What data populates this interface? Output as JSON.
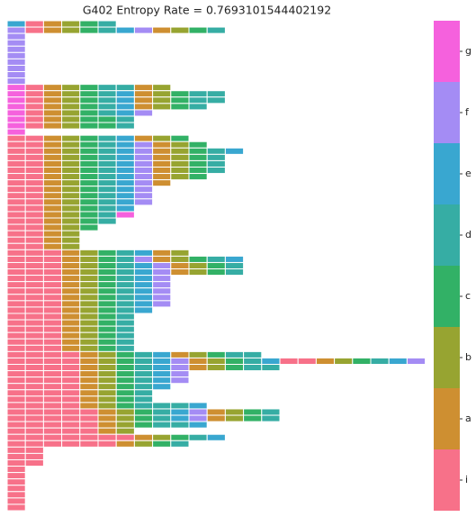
{
  "chart_data": {
    "type": "sequence-heatmap",
    "title": "G402 Entropy Rate = 0.7693101544402192",
    "categories": [
      "i",
      "a",
      "b",
      "c",
      "d",
      "e",
      "f",
      "g"
    ],
    "colors": [
      "#f77189",
      "#ce8f31",
      "#97a431",
      "#32b166",
      "#36ada4",
      "#39a7d0",
      "#a48cf4",
      "#f561dd"
    ],
    "rows": [
      [
        "e",
        "i",
        "a",
        "b",
        "c",
        "d"
      ],
      [
        "f",
        "i",
        "a",
        "b",
        "c",
        "d",
        "e",
        "f",
        "a",
        "b",
        "c",
        "d"
      ],
      [
        "f"
      ],
      [
        "f"
      ],
      [
        "f"
      ],
      [
        "f"
      ],
      [
        "f"
      ],
      [
        "f"
      ],
      [
        "f"
      ],
      [
        "f"
      ],
      [
        "g",
        "i",
        "a",
        "b",
        "c",
        "d",
        "d",
        "a",
        "b"
      ],
      [
        "g",
        "i",
        "a",
        "b",
        "c",
        "d",
        "e",
        "a",
        "b",
        "c",
        "d",
        "d"
      ],
      [
        "g",
        "i",
        "a",
        "b",
        "c",
        "d",
        "e",
        "a",
        "b",
        "c",
        "d",
        "d"
      ],
      [
        "g",
        "i",
        "a",
        "b",
        "c",
        "d",
        "e",
        "a",
        "b",
        "c",
        "d"
      ],
      [
        "g",
        "i",
        "a",
        "b",
        "c",
        "d",
        "e",
        "f"
      ],
      [
        "g",
        "i",
        "a",
        "b",
        "c",
        "c",
        "d"
      ],
      [
        "g",
        "i",
        "a",
        "b",
        "c",
        "c",
        "d"
      ],
      [
        "g"
      ],
      [
        "i",
        "i",
        "a",
        "b",
        "c",
        "d",
        "e",
        "a",
        "b",
        "c"
      ],
      [
        "i",
        "i",
        "a",
        "b",
        "c",
        "d",
        "e",
        "f",
        "a",
        "b",
        "c"
      ],
      [
        "i",
        "i",
        "a",
        "b",
        "c",
        "d",
        "e",
        "f",
        "a",
        "b",
        "c",
        "d",
        "e"
      ],
      [
        "i",
        "i",
        "a",
        "b",
        "c",
        "d",
        "e",
        "f",
        "a",
        "b",
        "c",
        "d"
      ],
      [
        "i",
        "i",
        "a",
        "b",
        "c",
        "d",
        "e",
        "f",
        "a",
        "b",
        "c",
        "d"
      ],
      [
        "i",
        "i",
        "a",
        "b",
        "c",
        "d",
        "e",
        "f",
        "a",
        "b",
        "c",
        "d"
      ],
      [
        "i",
        "i",
        "a",
        "b",
        "c",
        "d",
        "e",
        "f",
        "a",
        "b",
        "c"
      ],
      [
        "i",
        "i",
        "a",
        "b",
        "c",
        "d",
        "e",
        "f",
        "a"
      ],
      [
        "i",
        "i",
        "a",
        "b",
        "c",
        "d",
        "e",
        "f"
      ],
      [
        "i",
        "i",
        "a",
        "b",
        "c",
        "d",
        "e",
        "f"
      ],
      [
        "i",
        "i",
        "a",
        "b",
        "c",
        "d",
        "e",
        "f"
      ],
      [
        "i",
        "i",
        "a",
        "b",
        "c",
        "d",
        "e"
      ],
      [
        "i",
        "i",
        "a",
        "b",
        "c",
        "d",
        "g"
      ],
      [
        "i",
        "i",
        "a",
        "b",
        "c",
        "d"
      ],
      [
        "i",
        "i",
        "a",
        "b",
        "c"
      ],
      [
        "i",
        "i",
        "a",
        "b"
      ],
      [
        "i",
        "i",
        "a",
        "b"
      ],
      [
        "i",
        "i",
        "a",
        "b"
      ],
      [
        "i",
        "i",
        "i",
        "a",
        "b",
        "c",
        "d",
        "e",
        "a",
        "b"
      ],
      [
        "i",
        "i",
        "i",
        "a",
        "b",
        "c",
        "d",
        "f",
        "a",
        "b",
        "c",
        "d",
        "e"
      ],
      [
        "i",
        "i",
        "i",
        "a",
        "b",
        "c",
        "d",
        "e",
        "f",
        "a",
        "b",
        "c",
        "d"
      ],
      [
        "i",
        "i",
        "i",
        "a",
        "b",
        "c",
        "d",
        "e",
        "f",
        "a",
        "b",
        "c",
        "d"
      ],
      [
        "i",
        "i",
        "i",
        "a",
        "b",
        "c",
        "d",
        "e",
        "f"
      ],
      [
        "i",
        "i",
        "i",
        "a",
        "b",
        "c",
        "d",
        "e",
        "f"
      ],
      [
        "i",
        "i",
        "i",
        "a",
        "b",
        "c",
        "d",
        "e",
        "f"
      ],
      [
        "i",
        "i",
        "i",
        "a",
        "b",
        "c",
        "d",
        "e",
        "f"
      ],
      [
        "i",
        "i",
        "i",
        "a",
        "b",
        "c",
        "d",
        "e",
        "f"
      ],
      [
        "i",
        "i",
        "i",
        "a",
        "b",
        "c",
        "d",
        "e"
      ],
      [
        "i",
        "i",
        "i",
        "a",
        "b",
        "c",
        "d"
      ],
      [
        "i",
        "i",
        "i",
        "a",
        "b",
        "c",
        "d"
      ],
      [
        "i",
        "i",
        "i",
        "a",
        "b",
        "c",
        "d"
      ],
      [
        "i",
        "i",
        "i",
        "a",
        "b",
        "c",
        "d"
      ],
      [
        "i",
        "i",
        "i",
        "a",
        "b",
        "c",
        "d"
      ],
      [
        "i",
        "i",
        "i",
        "a",
        "b",
        "c",
        "d"
      ],
      [
        "i",
        "i",
        "i",
        "i",
        "a",
        "b",
        "c",
        "d",
        "e",
        "a",
        "b",
        "c",
        "d",
        "d"
      ],
      [
        "i",
        "i",
        "i",
        "i",
        "a",
        "b",
        "c",
        "d",
        "e",
        "f",
        "a",
        "b",
        "c",
        "d",
        "e",
        "i",
        "i",
        "a",
        "b",
        "c",
        "d",
        "e",
        "f"
      ],
      [
        "i",
        "i",
        "i",
        "i",
        "a",
        "b",
        "c",
        "d",
        "e",
        "f",
        "a",
        "b",
        "c",
        "d",
        "d"
      ],
      [
        "i",
        "i",
        "i",
        "i",
        "a",
        "b",
        "c",
        "d",
        "e",
        "f"
      ],
      [
        "i",
        "i",
        "i",
        "i",
        "a",
        "b",
        "c",
        "d",
        "e",
        "f"
      ],
      [
        "i",
        "i",
        "i",
        "i",
        "a",
        "b",
        "c",
        "d",
        "e"
      ],
      [
        "i",
        "i",
        "i",
        "i",
        "a",
        "b",
        "c",
        "d"
      ],
      [
        "i",
        "i",
        "i",
        "i",
        "a",
        "b",
        "c",
        "d"
      ],
      [
        "i",
        "i",
        "i",
        "i",
        "a",
        "b",
        "c",
        "d",
        "d",
        "d",
        "e"
      ],
      [
        "i",
        "i",
        "i",
        "i",
        "i",
        "a",
        "b",
        "c",
        "d",
        "e",
        "f",
        "a",
        "b",
        "c",
        "d"
      ],
      [
        "i",
        "i",
        "i",
        "i",
        "i",
        "a",
        "b",
        "c",
        "d",
        "e",
        "f",
        "a",
        "b",
        "c",
        "d"
      ],
      [
        "i",
        "i",
        "i",
        "i",
        "i",
        "a",
        "b",
        "c",
        "d",
        "d",
        "e"
      ],
      [
        "i",
        "i",
        "i",
        "i",
        "i",
        "a",
        "b"
      ],
      [
        "i",
        "i",
        "i",
        "i",
        "i",
        "i",
        "i",
        "a",
        "b",
        "c",
        "d",
        "e"
      ],
      [
        "i",
        "i",
        "i",
        "i",
        "i",
        "i",
        "a",
        "b",
        "c",
        "d"
      ],
      [
        "i",
        "i"
      ],
      [
        "i",
        "i"
      ],
      [
        "i",
        "i"
      ],
      [
        "i"
      ],
      [
        "i"
      ],
      [
        "i"
      ],
      [
        "i"
      ],
      [
        "i"
      ],
      [
        "i"
      ],
      [
        "i"
      ]
    ]
  }
}
